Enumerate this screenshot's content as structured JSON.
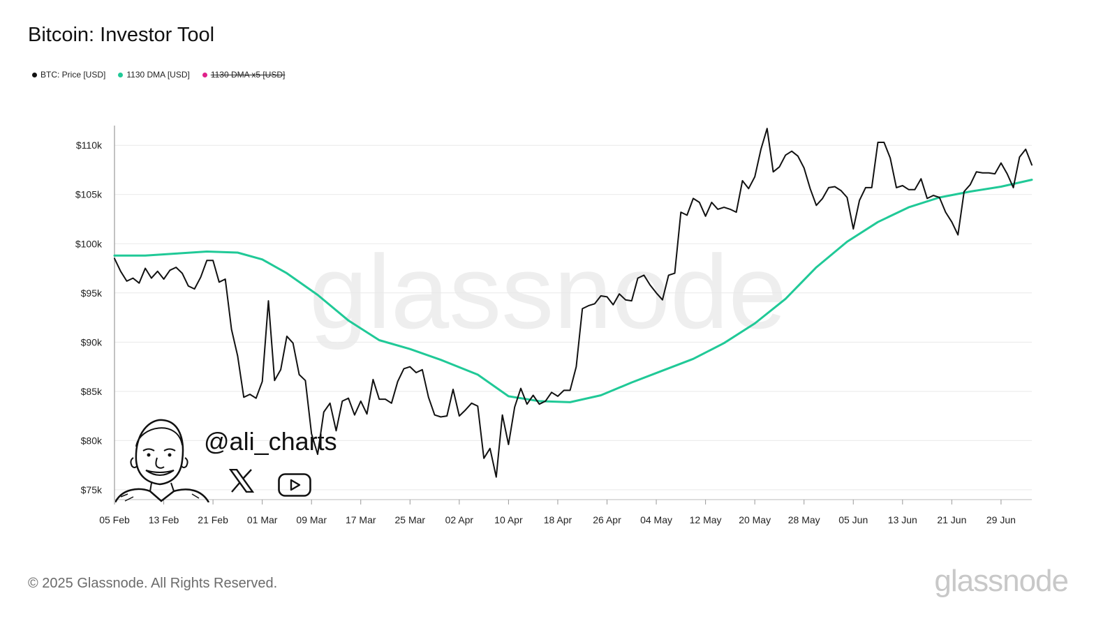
{
  "header": {
    "title": "Bitcoin: Investor Tool"
  },
  "legend": [
    {
      "label": "BTC: Price [USD]",
      "color": "#111111",
      "disabled": false
    },
    {
      "label": "1130 DMA [USD]",
      "color": "#20c997",
      "disabled": false
    },
    {
      "label": "1130 DMA x5 [USD]",
      "color": "#e0218a",
      "disabled": true
    }
  ],
  "watermark": {
    "text": "glassnode"
  },
  "overlay": {
    "handle": "@ali_charts",
    "icons": [
      "x-logo-icon",
      "youtube-icon",
      "avatar-sketch"
    ]
  },
  "footer": {
    "copyright": "© 2025 Glassnode. All Rights Reserved.",
    "brand": "glassnode"
  },
  "chart_data": {
    "type": "line",
    "title": "Bitcoin: Investor Tool",
    "xlabel": "",
    "ylabel": "",
    "x_range": [
      "2025-02-05",
      "2025-07-04"
    ],
    "ylim": [
      74000,
      112000
    ],
    "y_ticks": [
      75000,
      80000,
      85000,
      90000,
      95000,
      100000,
      105000,
      110000
    ],
    "y_tick_labels": [
      "$75k",
      "$80k",
      "$85k",
      "$90k",
      "$95k",
      "$100k",
      "$105k",
      "$110k"
    ],
    "x_ticks": [
      "2025-02-05",
      "2025-02-13",
      "2025-02-21",
      "2025-03-01",
      "2025-03-09",
      "2025-03-17",
      "2025-03-25",
      "2025-04-02",
      "2025-04-10",
      "2025-04-18",
      "2025-04-26",
      "2025-05-04",
      "2025-05-12",
      "2025-05-20",
      "2025-05-28",
      "2025-06-05",
      "2025-06-13",
      "2025-06-21",
      "2025-06-29"
    ],
    "x_tick_labels": [
      "05 Feb",
      "13 Feb",
      "21 Feb",
      "01 Mar",
      "09 Mar",
      "17 Mar",
      "25 Mar",
      "02 Apr",
      "10 Apr",
      "18 Apr",
      "26 Apr",
      "04 May",
      "12 May",
      "20 May",
      "28 May",
      "05 Jun",
      "13 Jun",
      "21 Jun",
      "29 Jun"
    ],
    "grid": true,
    "legend_position": "top-left",
    "series": [
      {
        "name": "BTC: Price [USD]",
        "color": "#111111",
        "x": [
          "2025-02-05",
          "2025-02-06",
          "2025-02-07",
          "2025-02-08",
          "2025-02-09",
          "2025-02-10",
          "2025-02-11",
          "2025-02-12",
          "2025-02-13",
          "2025-02-14",
          "2025-02-15",
          "2025-02-16",
          "2025-02-17",
          "2025-02-18",
          "2025-02-19",
          "2025-02-20",
          "2025-02-21",
          "2025-02-22",
          "2025-02-23",
          "2025-02-24",
          "2025-02-25",
          "2025-02-26",
          "2025-02-27",
          "2025-02-28",
          "2025-03-01",
          "2025-03-02",
          "2025-03-03",
          "2025-03-04",
          "2025-03-05",
          "2025-03-06",
          "2025-03-07",
          "2025-03-08",
          "2025-03-09",
          "2025-03-10",
          "2025-03-11",
          "2025-03-12",
          "2025-03-13",
          "2025-03-14",
          "2025-03-15",
          "2025-03-16",
          "2025-03-17",
          "2025-03-18",
          "2025-03-19",
          "2025-03-20",
          "2025-03-21",
          "2025-03-22",
          "2025-03-23",
          "2025-03-24",
          "2025-03-25",
          "2025-03-26",
          "2025-03-27",
          "2025-03-28",
          "2025-03-29",
          "2025-03-30",
          "2025-03-31",
          "2025-04-01",
          "2025-04-02",
          "2025-04-03",
          "2025-04-04",
          "2025-04-05",
          "2025-04-06",
          "2025-04-07",
          "2025-04-08",
          "2025-04-09",
          "2025-04-10",
          "2025-04-11",
          "2025-04-12",
          "2025-04-13",
          "2025-04-14",
          "2025-04-15",
          "2025-04-16",
          "2025-04-17",
          "2025-04-18",
          "2025-04-19",
          "2025-04-20",
          "2025-04-21",
          "2025-04-22",
          "2025-04-23",
          "2025-04-24",
          "2025-04-25",
          "2025-04-26",
          "2025-04-27",
          "2025-04-28",
          "2025-04-29",
          "2025-04-30",
          "2025-05-01",
          "2025-05-02",
          "2025-05-03",
          "2025-05-04",
          "2025-05-05",
          "2025-05-06",
          "2025-05-07",
          "2025-05-08",
          "2025-05-09",
          "2025-05-10",
          "2025-05-11",
          "2025-05-12",
          "2025-05-13",
          "2025-05-14",
          "2025-05-15",
          "2025-05-16",
          "2025-05-17",
          "2025-05-18",
          "2025-05-19",
          "2025-05-20",
          "2025-05-21",
          "2025-05-22",
          "2025-05-23",
          "2025-05-24",
          "2025-05-25",
          "2025-05-26",
          "2025-05-27",
          "2025-05-28",
          "2025-05-29",
          "2025-05-30",
          "2025-05-31",
          "2025-06-01",
          "2025-06-02",
          "2025-06-03",
          "2025-06-04",
          "2025-06-05",
          "2025-06-06",
          "2025-06-07",
          "2025-06-08",
          "2025-06-09",
          "2025-06-10",
          "2025-06-11",
          "2025-06-12",
          "2025-06-13",
          "2025-06-14",
          "2025-06-15",
          "2025-06-16",
          "2025-06-17",
          "2025-06-18",
          "2025-06-19",
          "2025-06-20",
          "2025-06-21",
          "2025-06-22",
          "2025-06-23",
          "2025-06-24",
          "2025-06-25",
          "2025-06-26",
          "2025-06-27",
          "2025-06-28",
          "2025-06-29",
          "2025-06-30",
          "2025-07-01",
          "2025-07-02",
          "2025-07-03",
          "2025-07-04"
        ],
        "values": [
          98500,
          97200,
          96200,
          96500,
          96000,
          97500,
          96500,
          97200,
          96400,
          97300,
          97600,
          97000,
          95700,
          95400,
          96600,
          98300,
          98300,
          96100,
          96400,
          91300,
          88600,
          84400,
          84700,
          84300,
          86000,
          94200,
          86100,
          87200,
          90600,
          89900,
          86700,
          86100,
          80700,
          78600,
          82900,
          83800,
          81000,
          84000,
          84300,
          82600,
          84000,
          82700,
          86200,
          84200,
          84200,
          83800,
          86000,
          87300,
          87500,
          86900,
          87200,
          84400,
          82600,
          82400,
          82500,
          85200,
          82500,
          83100,
          83800,
          83500,
          78200,
          79200,
          76300,
          82600,
          79600,
          83400,
          85300,
          83700,
          84600,
          83700,
          84000,
          84900,
          84500,
          85100,
          85100,
          87500,
          93400,
          93700,
          93900,
          94700,
          94600,
          93800,
          94900,
          94300,
          94200,
          96500,
          96800,
          95800,
          95000,
          94300,
          96800,
          97000,
          103200,
          102900,
          104600,
          104200,
          102800,
          104200,
          103500,
          103700,
          103500,
          103200,
          106400,
          105600,
          106800,
          109600,
          111700,
          107300,
          107800,
          109000,
          109400,
          108900,
          107700,
          105600,
          103900,
          104600,
          105700,
          105800,
          105400,
          104700,
          101500,
          104400,
          105700,
          105700,
          110300,
          110300,
          108700,
          105700,
          105900,
          105500,
          105500,
          106600,
          104600,
          104900,
          104700,
          103200,
          102200,
          100900,
          105300,
          106000,
          107300,
          107200,
          107200,
          107100,
          108200,
          107100,
          105700,
          108800,
          109600,
          108000
        ]
      },
      {
        "name": "1130 DMA [USD]",
        "color": "#20c997",
        "x": [
          "2025-02-05",
          "2025-02-10",
          "2025-02-15",
          "2025-02-20",
          "2025-02-25",
          "2025-03-01",
          "2025-03-05",
          "2025-03-10",
          "2025-03-15",
          "2025-03-20",
          "2025-03-25",
          "2025-03-30",
          "2025-04-05",
          "2025-04-10",
          "2025-04-15",
          "2025-04-20",
          "2025-04-25",
          "2025-04-30",
          "2025-05-05",
          "2025-05-10",
          "2025-05-15",
          "2025-05-20",
          "2025-05-25",
          "2025-05-30",
          "2025-06-04",
          "2025-06-09",
          "2025-06-14",
          "2025-06-19",
          "2025-06-24",
          "2025-06-29",
          "2025-07-04"
        ],
        "values": [
          98800,
          98800,
          99000,
          99200,
          99100,
          98400,
          97000,
          94800,
          92200,
          90200,
          89300,
          88200,
          86700,
          84500,
          84000,
          83900,
          84600,
          85900,
          87100,
          88300,
          89900,
          91900,
          94400,
          97600,
          100200,
          102200,
          103700,
          104700,
          105300,
          105800,
          106500
        ]
      }
    ]
  }
}
